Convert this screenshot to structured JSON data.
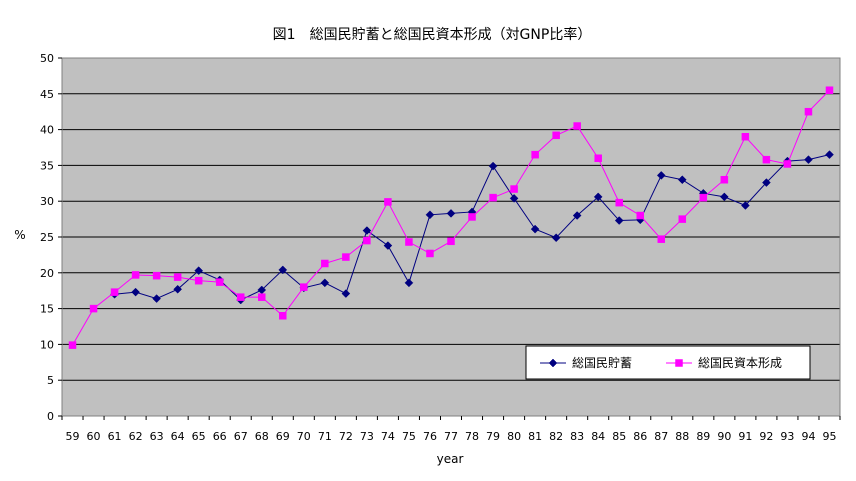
{
  "chart_data": {
    "type": "line",
    "title": "図1　総国民貯蓄と総国民資本形成（対GNP比率）",
    "xlabel": "year",
    "ylabel": "%",
    "ylim": [
      0,
      50
    ],
    "yticks": [
      0,
      5,
      10,
      15,
      20,
      25,
      30,
      35,
      40,
      45,
      50
    ],
    "grid": true,
    "legend": "bottom-right",
    "categories": [
      "59",
      "60",
      "61",
      "62",
      "63",
      "64",
      "65",
      "66",
      "67",
      "68",
      "69",
      "70",
      "71",
      "72",
      "73",
      "74",
      "75",
      "76",
      "77",
      "78",
      "79",
      "80",
      "81",
      "82",
      "83",
      "84",
      "85",
      "86",
      "87",
      "88",
      "89",
      "90",
      "91",
      "92",
      "93",
      "94",
      "95"
    ],
    "series": [
      {
        "name": "総国民貯蓄",
        "color": "#000080",
        "marker": "diamond",
        "values": [
          null,
          null,
          17.0,
          17.3,
          16.4,
          17.7,
          20.3,
          19.0,
          16.2,
          17.6,
          20.4,
          17.9,
          18.6,
          17.1,
          25.9,
          23.8,
          18.6,
          28.1,
          28.3,
          28.5,
          34.9,
          30.4,
          26.1,
          24.9,
          28.0,
          30.6,
          27.3,
          27.4,
          33.6,
          33.0,
          31.1,
          30.6,
          29.4,
          32.6,
          35.6,
          35.8,
          36.5
        ]
      },
      {
        "name": "総国民資本形成",
        "color": "#FF00FF",
        "marker": "square",
        "values": [
          9.9,
          15.0,
          17.3,
          19.7,
          19.6,
          19.4,
          18.9,
          18.7,
          16.6,
          16.6,
          14.0,
          18.0,
          21.3,
          22.2,
          24.5,
          29.9,
          24.3,
          22.7,
          24.4,
          27.8,
          30.5,
          31.7,
          36.5,
          39.2,
          40.5,
          36.0,
          29.8,
          28.0,
          24.7,
          27.5,
          30.5,
          33.0,
          39.0,
          35.8,
          35.2,
          42.5,
          45.5
        ]
      }
    ]
  }
}
